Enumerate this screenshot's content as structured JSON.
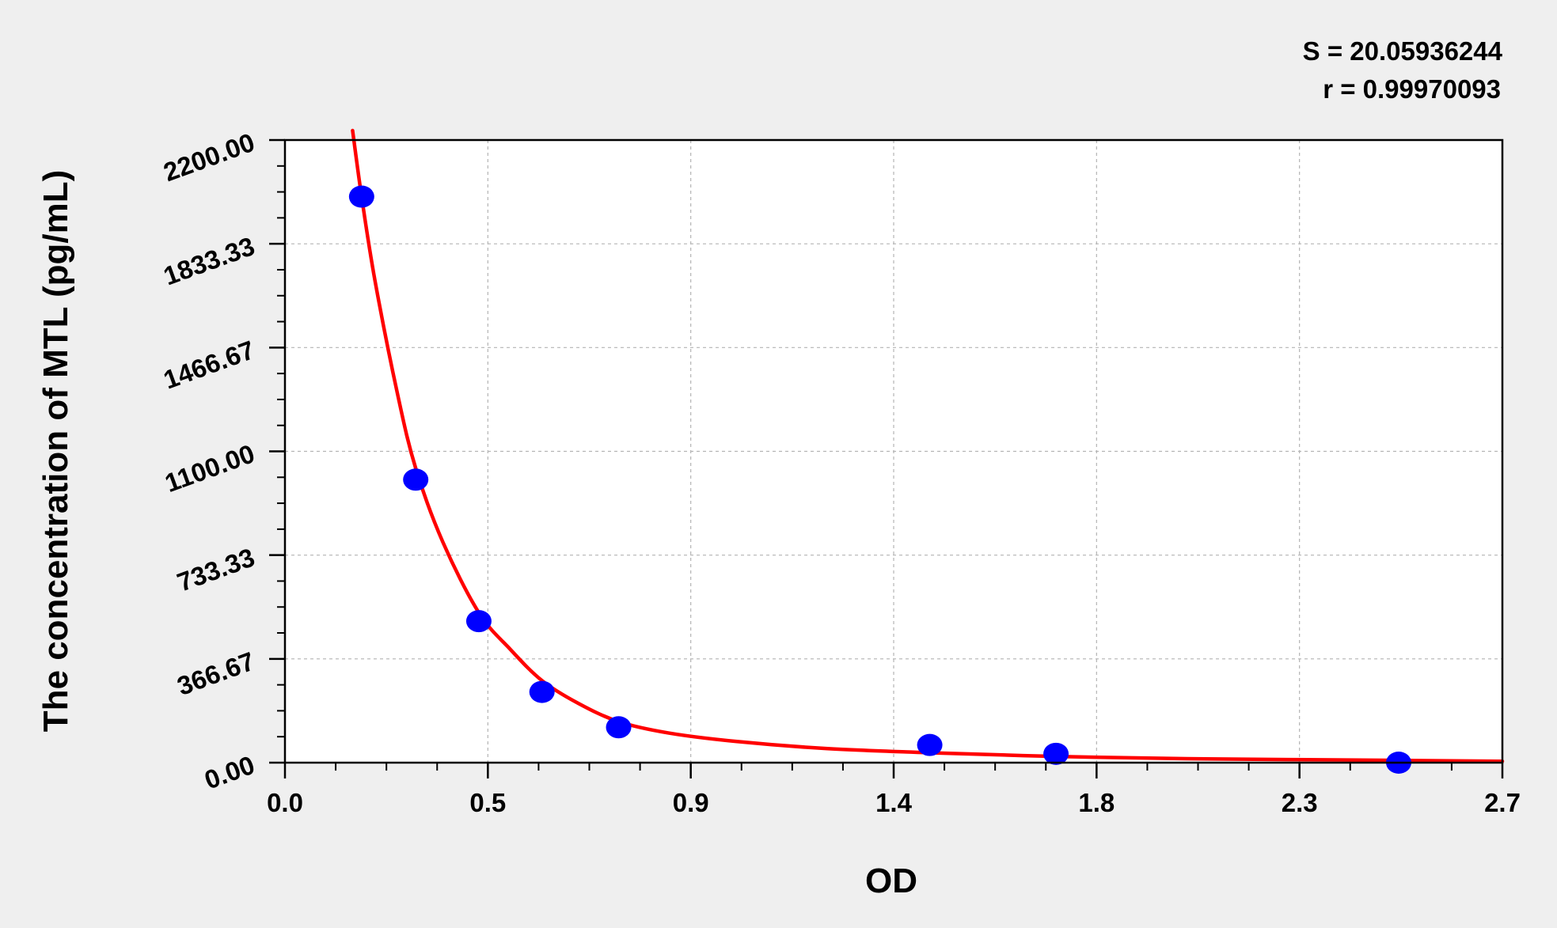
{
  "stats": {
    "s_text": "S = 20.05936244",
    "r_text": "r = 0.99970093"
  },
  "chart_data": {
    "type": "scatter",
    "title": "",
    "xlabel": "OD",
    "ylabel": "The concentration of MTL (pg/mL)",
    "xlim": [
      0.0,
      2.7
    ],
    "ylim": [
      0.0,
      2200.0
    ],
    "x_ticks": [
      {
        "value": 0.0,
        "label": "0.0"
      },
      {
        "value": 0.45,
        "label": "0.5"
      },
      {
        "value": 0.9,
        "label": "0.9"
      },
      {
        "value": 1.35,
        "label": "1.4"
      },
      {
        "value": 1.8,
        "label": "1.8"
      },
      {
        "value": 2.25,
        "label": "2.3"
      },
      {
        "value": 2.7,
        "label": "2.7"
      }
    ],
    "y_ticks": [
      {
        "value": 0.0,
        "label": "0.00"
      },
      {
        "value": 366.67,
        "label": "366.67"
      },
      {
        "value": 733.33,
        "label": "733.33"
      },
      {
        "value": 1100.0,
        "label": "1100.00"
      },
      {
        "value": 1466.67,
        "label": "1466.67"
      },
      {
        "value": 1833.33,
        "label": "1833.33"
      },
      {
        "value": 2200.0,
        "label": "2200.00"
      }
    ],
    "grid": true,
    "series": [
      {
        "kind": "points",
        "color": "#0000ff",
        "points": [
          {
            "x": 0.17,
            "y": 2000
          },
          {
            "x": 0.29,
            "y": 1000
          },
          {
            "x": 0.43,
            "y": 500
          },
          {
            "x": 0.57,
            "y": 250
          },
          {
            "x": 0.74,
            "y": 125
          },
          {
            "x": 1.43,
            "y": 62.5
          },
          {
            "x": 1.71,
            "y": 31.25
          },
          {
            "x": 2.47,
            "y": 0
          }
        ]
      },
      {
        "kind": "fit-curve",
        "color": "#ff0000",
        "points": [
          {
            "x": 0.15,
            "y": 2240
          },
          {
            "x": 0.17,
            "y": 2000
          },
          {
            "x": 0.2,
            "y": 1700
          },
          {
            "x": 0.25,
            "y": 1300
          },
          {
            "x": 0.29,
            "y": 1040
          },
          {
            "x": 0.35,
            "y": 780
          },
          {
            "x": 0.43,
            "y": 530
          },
          {
            "x": 0.5,
            "y": 400
          },
          {
            "x": 0.57,
            "y": 290
          },
          {
            "x": 0.65,
            "y": 210
          },
          {
            "x": 0.74,
            "y": 145
          },
          {
            "x": 0.85,
            "y": 105
          },
          {
            "x": 1.0,
            "y": 75
          },
          {
            "x": 1.2,
            "y": 50
          },
          {
            "x": 1.43,
            "y": 35
          },
          {
            "x": 1.71,
            "y": 22
          },
          {
            "x": 2.0,
            "y": 14
          },
          {
            "x": 2.47,
            "y": 8
          },
          {
            "x": 2.7,
            "y": 5
          }
        ]
      }
    ]
  }
}
